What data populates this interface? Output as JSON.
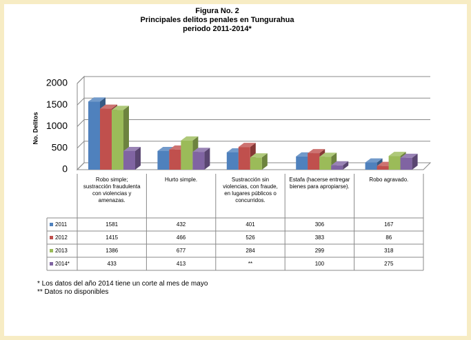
{
  "chart_data": {
    "type": "bar3d",
    "title": "Figura No. 2",
    "subtitle": [
      "Principales delitos penales en Tungurahua",
      "periodo 2011-2014*"
    ],
    "ylabel": "No. Delitos",
    "categories": [
      "Robo simple; sustracción fraudulenta con violencias y amenazas.",
      "Hurto simple.",
      "Sustracción sin violencias, con fraude, en lugares públicos o concurridos.",
      "Estafa (hacerse entregar bienes para apropiarse).",
      "Robo agravado."
    ],
    "series": [
      {
        "name": "2011",
        "color": "#4f81bd",
        "values": [
          1581,
          432,
          401,
          306,
          167
        ]
      },
      {
        "name": "2012",
        "color": "#c0504d",
        "values": [
          1415,
          466,
          526,
          383,
          86
        ]
      },
      {
        "name": "2013",
        "color": "#9bbb59",
        "values": [
          1386,
          677,
          284,
          299,
          318
        ]
      },
      {
        "name": "2014*",
        "color": "#8064a2",
        "values": [
          433,
          413,
          null,
          100,
          275
        ],
        "value_labels": [
          "433",
          "413",
          "**",
          "100",
          "275"
        ]
      }
    ],
    "ylim": [
      0,
      2000
    ],
    "yticks": [
      0,
      500,
      1000,
      1500,
      2000
    ],
    "grid": true,
    "annotations": [
      "*  Los datos  del año 2014 tiene un corte al mes de mayo",
      "** Datos no disponibles"
    ]
  }
}
